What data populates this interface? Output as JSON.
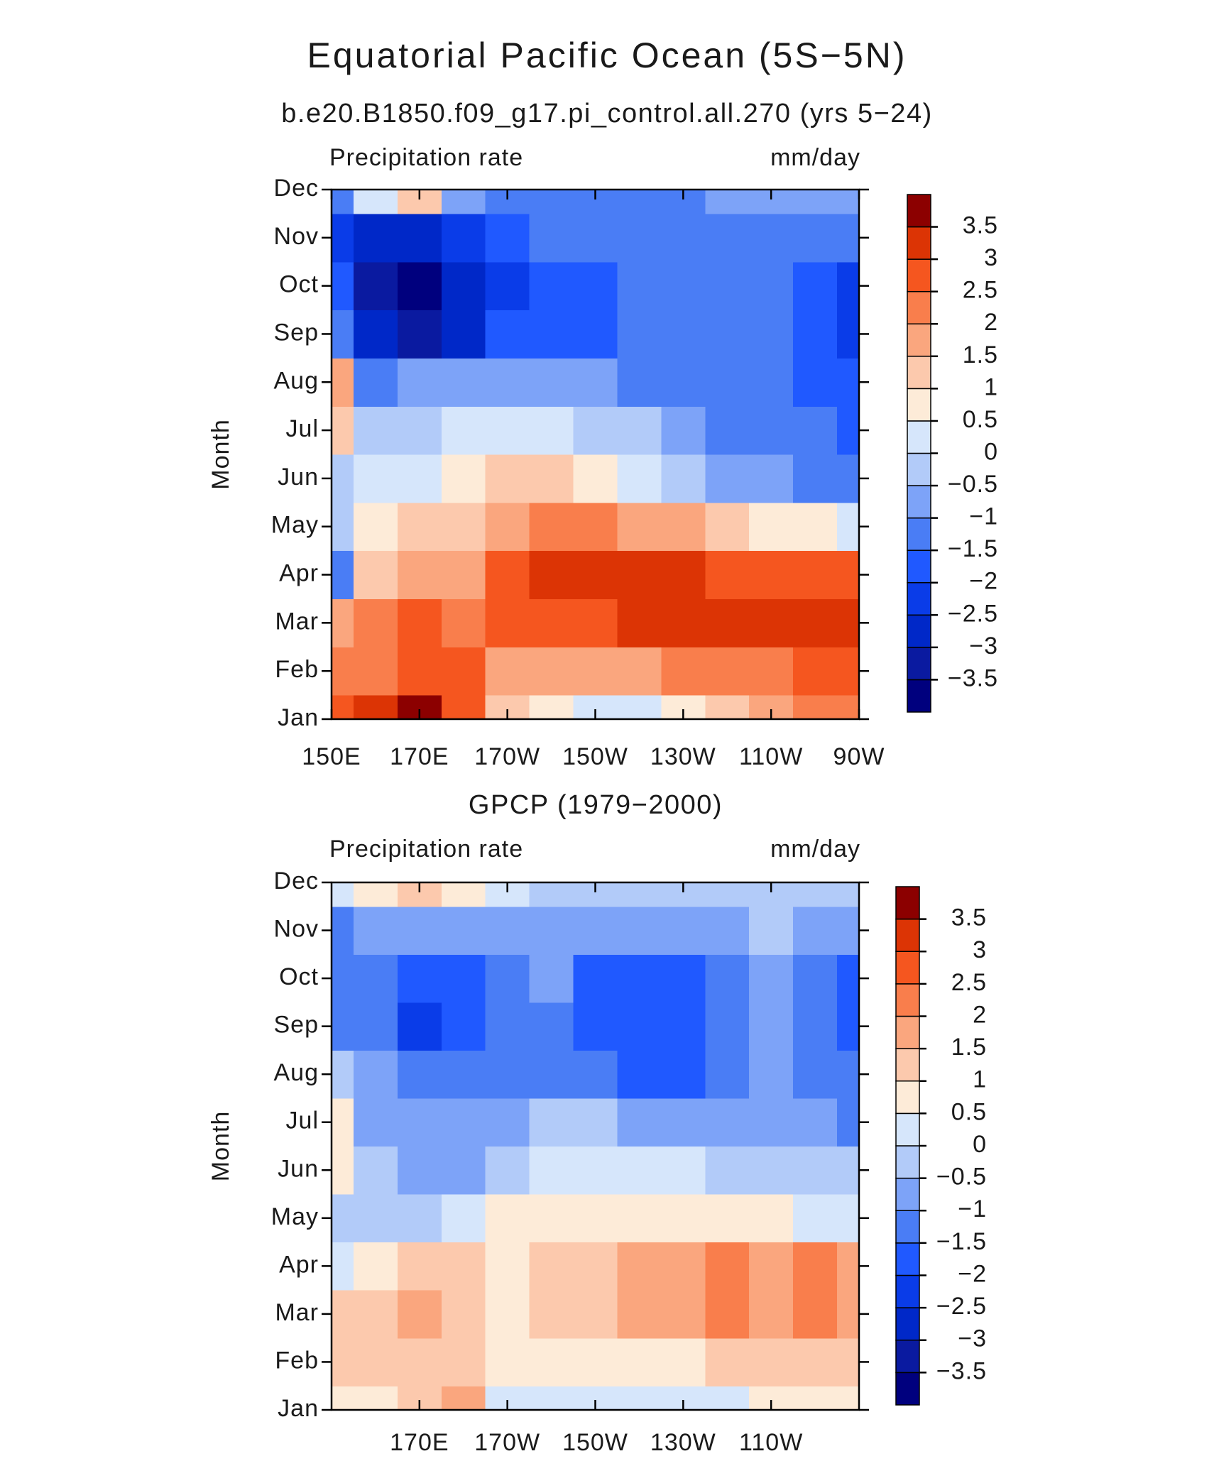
{
  "chart_data": [
    {
      "type": "contour",
      "title": "Equatorial Pacific Ocean (5S−5N)",
      "subtitle": "b.e20.B1850.f09_g17.pi_control.all.270 (yrs 5−24)",
      "left_string": "Precipitation rate",
      "right_string": "mm/day",
      "ylabel": "Month",
      "x": [
        150,
        160,
        170,
        180,
        190,
        200,
        210,
        220,
        230,
        240,
        250,
        260,
        270
      ],
      "y": [
        "Jan",
        "Feb",
        "Mar",
        "Apr",
        "May",
        "Jun",
        "Jul",
        "Aug",
        "Sep",
        "Oct",
        "Nov",
        "Dec"
      ],
      "xlim": [
        150,
        270
      ],
      "xticks": [
        {
          "value": 150,
          "label": "150E"
        },
        {
          "value": 170,
          "label": "170E"
        },
        {
          "value": 190,
          "label": "170W"
        },
        {
          "value": 210,
          "label": "150W"
        },
        {
          "value": 230,
          "label": "130W"
        },
        {
          "value": 250,
          "label": "110W"
        },
        {
          "value": 270,
          "label": "90W"
        }
      ],
      "values": [
        [
          2.5,
          3,
          3.5,
          2.5,
          1,
          0.5,
          0.2,
          0.3,
          0.7,
          1.2,
          1.6,
          2,
          2.3
        ],
        [
          2,
          2,
          2.5,
          2.5,
          1.5,
          1.5,
          1.5,
          1.7,
          2,
          2.2,
          2.4,
          2.6,
          2.8
        ],
        [
          1.5,
          2,
          2.5,
          2.3,
          2.5,
          2.7,
          2.8,
          3,
          3,
          3.2,
          3.2,
          3.3,
          3.4
        ],
        [
          -1.2,
          1,
          1.5,
          1.8,
          2.7,
          3,
          3.2,
          3.1,
          3,
          2.8,
          2.6,
          2.6,
          2.6
        ],
        [
          -0.5,
          0.5,
          1,
          1.2,
          1.8,
          2,
          2,
          1.8,
          1.5,
          1,
          0.7,
          0.5,
          0.3
        ],
        [
          -0.3,
          0.3,
          0.2,
          0.6,
          1,
          1,
          0.6,
          0.2,
          -0.2,
          -0.6,
          -0.9,
          -1.1,
          -1.3
        ],
        [
          1,
          -0.3,
          -0.2,
          0.3,
          0.3,
          0.2,
          -0.2,
          -0.5,
          -0.8,
          -1.1,
          -1.3,
          -1.5,
          -1.8
        ],
        [
          1.5,
          -1.5,
          -1,
          -0.8,
          -0.8,
          -0.8,
          -1,
          -1.2,
          -1.3,
          -1.4,
          -1.5,
          -1.6,
          -2
        ],
        [
          -1.5,
          -3,
          -3.3,
          -2.8,
          -2,
          -1.7,
          -1.6,
          -1.5,
          -1.5,
          -1.5,
          -1.5,
          -1.8,
          -2.2
        ],
        [
          -2,
          -3.4,
          -3.7,
          -3,
          -2.5,
          -2,
          -1.8,
          -1.5,
          -1.5,
          -1.5,
          -1.5,
          -1.8,
          -2.1
        ],
        [
          -2.1,
          -3,
          -3,
          -2.5,
          -2,
          -1.5,
          -1.5,
          -1.2,
          -1.2,
          -1.2,
          -1.2,
          -1.2,
          -1.4
        ],
        [
          -1.5,
          0.3,
          1,
          -0.8,
          -1.2,
          -1.2,
          -1.2,
          -1.2,
          -1.1,
          -1,
          -0.8,
          -0.6,
          -0.6
        ]
      ],
      "colors": [
        "#00007e",
        "#0a1aa0",
        "#0028c8",
        "#0a3ce8",
        "#2059ff",
        "#4a7df5",
        "#7da3f8",
        "#b2cbf9",
        "#d6e6fb",
        "#fdebd8",
        "#fcc9ad",
        "#faa67e",
        "#f97e4c",
        "#f5561f",
        "#dc3405",
        "#8c0000"
      ],
      "colorbar_ticks": [
        {
          "value": -3.5,
          "label": "−3.5"
        },
        {
          "value": -3,
          "label": "−3"
        },
        {
          "value": -2.5,
          "label": "−2.5"
        },
        {
          "value": -2,
          "label": "−2"
        },
        {
          "value": -1.5,
          "label": "−1.5"
        },
        {
          "value": -1,
          "label": "−1"
        },
        {
          "value": -0.5,
          "label": "−0.5"
        },
        0,
        0.5,
        1,
        1.5,
        2,
        2.5,
        3,
        3.5
      ]
    },
    {
      "type": "contour",
      "subtitle": "GPCP (1979−2000)",
      "left_string": "Precipitation rate",
      "right_string": "mm/day",
      "ylabel": "Month",
      "x": [
        150,
        160,
        170,
        180,
        190,
        200,
        210,
        220,
        230,
        240,
        250,
        260,
        270
      ],
      "y": [
        "Jan",
        "Feb",
        "Mar",
        "Apr",
        "May",
        "Jun",
        "Jul",
        "Aug",
        "Sep",
        "Oct",
        "Nov",
        "Dec"
      ],
      "xlim": [
        150,
        270
      ],
      "xticks": [
        {
          "value": 170,
          "label": "170E"
        },
        {
          "value": 190,
          "label": "170W"
        },
        {
          "value": 210,
          "label": "150W"
        },
        {
          "value": 230,
          "label": "130W"
        },
        {
          "value": 250,
          "label": "110W"
        }
      ],
      "values": [
        [
          0.6,
          0.8,
          1.2,
          1.7,
          0.3,
          0.2,
          0.2,
          0.2,
          0.3,
          0.4,
          0.5,
          0.6,
          0.8
        ],
        [
          1,
          1.2,
          1.4,
          1.3,
          0.6,
          0.5,
          0.6,
          0.8,
          0.9,
          1,
          1.1,
          1.2,
          1.4
        ],
        [
          1.2,
          1.3,
          1.5,
          1.4,
          0.8,
          1,
          1.4,
          1.6,
          1.8,
          2,
          1.8,
          2,
          1.8
        ],
        [
          0.4,
          0.8,
          1,
          1,
          0.9,
          1,
          1.4,
          1.7,
          1.8,
          2,
          1.8,
          2,
          1.7
        ],
        [
          -0.3,
          -0.5,
          -0.5,
          0.4,
          0.7,
          0.8,
          0.8,
          0.8,
          0.7,
          0.6,
          0.5,
          0.4,
          0.3
        ],
        [
          0.5,
          -0.5,
          -0.8,
          -0.6,
          -0.3,
          0.2,
          0.3,
          0.2,
          0,
          -0.2,
          -0.3,
          -0.4,
          -0.5
        ],
        [
          0.7,
          -0.7,
          -0.7,
          -0.8,
          -0.7,
          -0.5,
          -0.5,
          -0.6,
          -0.7,
          -0.8,
          -0.9,
          -1,
          -1.2
        ],
        [
          -0.3,
          -1,
          -1.2,
          -1.2,
          -1.2,
          -1.2,
          -1.5,
          -1.6,
          -1.6,
          -1.3,
          -1,
          -1.2,
          -1.5
        ],
        [
          -1.2,
          -1.5,
          -2.1,
          -1.8,
          -1.3,
          -1.3,
          -1.6,
          -1.7,
          -1.7,
          -1.5,
          -1,
          -1.2,
          -1.6
        ],
        [
          -1.5,
          -1.3,
          -1.7,
          -2,
          -1.3,
          -1,
          -1.6,
          -1.7,
          -1.6,
          -1.2,
          -1,
          -1.3,
          -1.7
        ],
        [
          -1.2,
          -0.8,
          -0.8,
          -0.8,
          -0.8,
          -0.8,
          -0.8,
          -0.7,
          -0.6,
          -0.6,
          -0.5,
          -0.6,
          -0.7
        ],
        [
          0.3,
          0.6,
          1,
          0.6,
          0.3,
          -0.2,
          -0.3,
          -0.3,
          -0.3,
          -0.3,
          -0.3,
          -0.3,
          -0.3
        ]
      ],
      "colors": [
        "#00007e",
        "#0a1aa0",
        "#0028c8",
        "#0a3ce8",
        "#2059ff",
        "#4a7df5",
        "#7da3f8",
        "#b2cbf9",
        "#d6e6fb",
        "#fdebd8",
        "#fcc9ad",
        "#faa67e",
        "#f97e4c",
        "#f5561f",
        "#dc3405",
        "#8c0000"
      ],
      "colorbar_ticks": [
        {
          "value": -3.5,
          "label": "−3.5"
        },
        {
          "value": -3,
          "label": "−3"
        },
        {
          "value": -2.5,
          "label": "−2.5"
        },
        {
          "value": -2,
          "label": "−2"
        },
        {
          "value": -1.5,
          "label": "−1.5"
        },
        {
          "value": -1,
          "label": "−1"
        },
        {
          "value": -0.5,
          "label": "−0.5"
        },
        0,
        0.5,
        1,
        1.5,
        2,
        2.5,
        3,
        3.5
      ]
    }
  ]
}
